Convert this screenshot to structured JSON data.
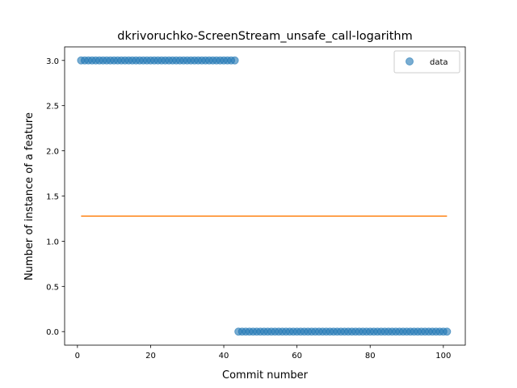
{
  "chart_data": {
    "type": "scatter",
    "title": "dkrivoruchko-ScreenStream_unsafe_call-logarithm",
    "xlabel": "Commit number",
    "ylabel": "Number of instance of a feature",
    "xlim": [
      -3.5,
      106
    ],
    "ylim": [
      -0.15,
      3.15
    ],
    "xticks": [
      0,
      20,
      40,
      60,
      80,
      100
    ],
    "xtick_labels": [
      "0",
      "20",
      "40",
      "60",
      "80",
      "100"
    ],
    "yticks": [
      0.0,
      0.5,
      1.0,
      1.5,
      2.0,
      2.5,
      3.0
    ],
    "ytick_labels": [
      "0.0",
      "0.5",
      "1.0",
      "1.5",
      "2.0",
      "2.5",
      "3.0"
    ],
    "grid": false,
    "legend": {
      "placement": "top-right",
      "entries": [
        "data"
      ]
    },
    "series": [
      {
        "name": "data",
        "kind": "scatter",
        "color": "#1f77b4",
        "segments": [
          {
            "x_start": 1,
            "x_end": 43,
            "y": 3.0
          },
          {
            "x_start": 44,
            "x_end": 101,
            "y": 0.0
          }
        ]
      },
      {
        "kind": "line",
        "color": "#ff7f0e",
        "x": [
          1,
          101
        ],
        "y": [
          1.277,
          1.277
        ]
      }
    ]
  }
}
